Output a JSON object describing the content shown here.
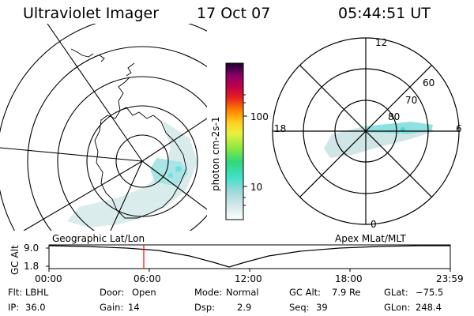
{
  "header": {
    "instrument": "Ultraviolet Imager",
    "date": "17 Oct 07",
    "time": "05:44:51 UT"
  },
  "colorbar": {
    "unit_label": "photon cm-2s-1",
    "ticks": [
      "100",
      "10"
    ],
    "scale": "log"
  },
  "polar_plot": {
    "lat_labels": [
      "60",
      "70",
      "80"
    ],
    "mlt_labels": {
      "top": "12",
      "left": "18",
      "right": "6",
      "bottom": "0"
    }
  },
  "timeline": {
    "left_title": "Geographic Lat/Lon",
    "right_title": "Apex MLat/MLT",
    "y_axis_label": "GC Alt",
    "y_ticks": [
      "9.0",
      "1.8"
    ],
    "x_ticks": [
      "00:00",
      "06:00",
      "12:00",
      "18:00",
      "23:59"
    ],
    "marker_time": "05:44:51",
    "marker_color": "#ff0000"
  },
  "status": {
    "row1": [
      {
        "key": "Flt:",
        "value": "LBHL"
      },
      {
        "key": "Door:",
        "value": "Open"
      },
      {
        "key": "Mode:",
        "value": "Normal"
      },
      {
        "key": "GC Alt:",
        "value": "7.9 Re"
      },
      {
        "key": "GLat:",
        "value": "−75.5"
      }
    ],
    "row2": [
      {
        "key": "IP:",
        "value": "36.0"
      },
      {
        "key": "Gain:",
        "value": "14"
      },
      {
        "key": "Dsp:",
        "value": "2.9"
      },
      {
        "key": "Seq:",
        "value": "39"
      },
      {
        "key": "GLon:",
        "value": "248.4"
      }
    ]
  },
  "colors": {
    "aurora": "#7fe6e6",
    "foreground": "#000000",
    "background": "#ffffff"
  }
}
